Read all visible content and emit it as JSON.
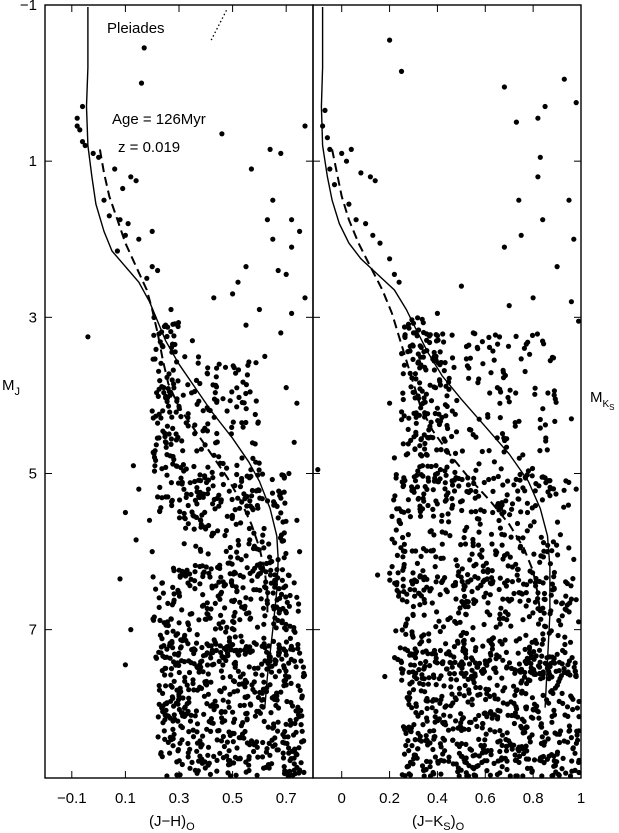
{
  "chart_data": [
    {
      "type": "scatter",
      "panel": "left",
      "xlabel_main": "(J−H)",
      "xlabel_sub": "O",
      "ylabel_main": "M",
      "ylabel_sub": "J",
      "xlim": [
        -0.2,
        0.8
      ],
      "ylim": [
        8.9,
        -1
      ],
      "x_ticks": [
        -0.1,
        0.1,
        0.3,
        0.5,
        0.7
      ],
      "x_tick_labels": [
        "−0.1",
        "0.1",
        "0.3",
        "0.5",
        "0.7"
      ],
      "y_ticks": [
        -1,
        1,
        3,
        5,
        7
      ],
      "y_tick_labels": [
        "−1",
        "1",
        "3",
        "5",
        "7"
      ],
      "annotations": {
        "cluster": "Pleiades",
        "age": "Age = 126Myr",
        "metallicity": "z = 0.019"
      },
      "reddening_vector": {
        "x": [
          0.42,
          0.48
        ],
        "y": [
          -0.55,
          -0.95
        ]
      },
      "isochrone_solid": {
        "x": [
          -0.04,
          -0.04,
          -0.045,
          -0.04,
          -0.025,
          -0.01,
          0.02,
          0.05,
          0.1,
          0.15,
          0.19,
          0.22,
          0.25,
          0.3,
          0.36,
          0.42,
          0.5,
          0.56,
          0.6,
          0.64,
          0.665,
          0.67,
          0.665,
          0.65,
          0.63,
          0.62
        ],
        "y": [
          -1,
          -0.2,
          0.3,
          0.8,
          1.2,
          1.55,
          1.9,
          2.15,
          2.35,
          2.55,
          2.8,
          3.05,
          3.3,
          3.6,
          3.9,
          4.2,
          4.55,
          4.85,
          5.1,
          5.45,
          5.8,
          6.1,
          6.5,
          7.0,
          7.6,
          8.0
        ]
      },
      "isochrone_dashed": {
        "x": [
          0.005,
          0.02,
          0.04,
          0.07,
          0.1,
          0.14,
          0.18,
          0.2,
          0.22,
          0.24,
          0.26,
          0.3,
          0.36,
          0.42,
          0.48,
          0.53,
          0.57,
          0.6,
          0.62,
          0.63,
          0.63
        ],
        "y": [
          0.85,
          1.15,
          1.45,
          1.75,
          2.05,
          2.35,
          2.65,
          2.9,
          3.2,
          3.55,
          3.85,
          4.15,
          4.45,
          4.75,
          5.05,
          5.35,
          5.65,
          5.95,
          6.25,
          6.55,
          6.8
        ]
      },
      "points": [
        [
          -0.08,
          0.45
        ],
        [
          -0.08,
          0.55
        ],
        [
          -0.07,
          0.6
        ],
        [
          -0.06,
          0.3
        ],
        [
          -0.06,
          0.75
        ],
        [
          -0.05,
          0.8
        ],
        [
          -0.02,
          0.9
        ],
        [
          0.0,
          0.95
        ],
        [
          0.06,
          1.1
        ],
        [
          0.09,
          1.35
        ],
        [
          0.12,
          1.2
        ],
        [
          0.14,
          1.25
        ],
        [
          0.02,
          1.5
        ],
        [
          0.04,
          1.7
        ],
        [
          0.08,
          1.75
        ],
        [
          0.11,
          1.8
        ],
        [
          0.1,
          1.95
        ],
        [
          0.2,
          1.9
        ],
        [
          0.07,
          2.15
        ],
        [
          0.15,
          2.0
        ],
        [
          0.2,
          2.35
        ],
        [
          0.22,
          2.4
        ],
        [
          0.18,
          2.5
        ],
        [
          0.16,
          0.0
        ],
        [
          0.17,
          -0.45
        ],
        [
          0.46,
          0.65
        ],
        [
          0.57,
          1.1
        ],
        [
          0.64,
          0.85
        ],
        [
          0.68,
          0.9
        ],
        [
          0.65,
          1.5
        ],
        [
          0.63,
          1.75
        ],
        [
          0.65,
          2.0
        ],
        [
          0.72,
          1.75
        ],
        [
          0.75,
          1.9
        ],
        [
          0.72,
          2.1
        ],
        [
          0.7,
          2.45
        ],
        [
          0.67,
          2.4
        ],
        [
          0.55,
          2.35
        ],
        [
          0.77,
          0.55
        ],
        [
          0.52,
          2.55
        ],
        [
          0.5,
          2.7
        ],
        [
          0.77,
          2.75
        ],
        [
          0.72,
          2.95
        ],
        [
          0.43,
          2.75
        ],
        [
          0.6,
          2.9
        ],
        [
          -0.04,
          3.25
        ],
        [
          0.27,
          2.9
        ],
        [
          0.25,
          3.1
        ],
        [
          0.1,
          5.5
        ],
        [
          0.13,
          4.9
        ],
        [
          0.15,
          5.2
        ],
        [
          0.08,
          6.35
        ],
        [
          0.12,
          7.0
        ],
        [
          0.1,
          7.45
        ],
        [
          0.14,
          5.85
        ],
        [
          0.2,
          4.2
        ],
        [
          0.21,
          4.9
        ],
        [
          0.22,
          5.3
        ],
        [
          0.19,
          5.6
        ],
        [
          0.2,
          6.0
        ],
        [
          0.35,
          3.3
        ],
        [
          0.45,
          3.6
        ],
        [
          0.55,
          3.1
        ],
        [
          0.62,
          3.5
        ],
        [
          0.68,
          3.2
        ],
        [
          0.7,
          3.9
        ],
        [
          0.74,
          4.1
        ],
        [
          0.73,
          4.6
        ],
        [
          0.71,
          5.0
        ],
        [
          0.74,
          5.6
        ],
        [
          0.75,
          6.0
        ],
        [
          0.73,
          6.4
        ],
        [
          0.7,
          7.0
        ],
        [
          0.75,
          7.3
        ],
        [
          0.68,
          7.8
        ],
        [
          0.72,
          8.2
        ],
        [
          0.74,
          8.6
        ],
        [
          0.73,
          8.8
        ]
      ],
      "cloud": [
        {
          "x_min": 0.2,
          "x_max": 0.3,
          "y_min": 3.0,
          "y_max": 5.5,
          "n": 90,
          "seed": 11
        },
        {
          "x_min": 0.25,
          "x_max": 0.6,
          "y_min": 3.5,
          "y_max": 5.5,
          "n": 150,
          "seed": 12
        },
        {
          "x_min": 0.3,
          "x_max": 0.7,
          "y_min": 5.0,
          "y_max": 6.5,
          "n": 180,
          "seed": 13
        },
        {
          "x_min": 0.2,
          "x_max": 0.75,
          "y_min": 6.2,
          "y_max": 7.5,
          "n": 260,
          "seed": 14
        },
        {
          "x_min": 0.22,
          "x_max": 0.77,
          "y_min": 7.2,
          "y_max": 8.9,
          "n": 460,
          "seed": 15
        }
      ]
    },
    {
      "type": "scatter",
      "panel": "right",
      "xlabel_main": "(J−K",
      "xlabel_mid": "S",
      "xlabel_end": ")",
      "xlabel_sub": "O",
      "ylabel_main": "M",
      "ylabel_sub": "K",
      "ylabel_subsub": "S",
      "xlim": [
        -0.12,
        1.0
      ],
      "ylim": [
        8.9,
        -1
      ],
      "x_ticks": [
        0,
        0.2,
        0.4,
        0.6,
        0.8,
        1.0
      ],
      "x_tick_labels": [
        "0",
        "0.2",
        "0.4",
        "0.6",
        "0.8",
        "1"
      ],
      "isochrone_solid": {
        "x": [
          -0.08,
          -0.08,
          -0.085,
          -0.08,
          -0.06,
          -0.04,
          -0.01,
          0.03,
          0.08,
          0.15,
          0.22,
          0.27,
          0.31,
          0.36,
          0.42,
          0.5,
          0.6,
          0.7,
          0.78,
          0.83,
          0.86,
          0.87,
          0.87,
          0.86,
          0.85
        ],
        "y": [
          -1,
          -0.2,
          0.3,
          0.8,
          1.2,
          1.5,
          1.8,
          2.05,
          2.25,
          2.45,
          2.65,
          2.9,
          3.15,
          3.45,
          3.75,
          4.05,
          4.4,
          4.75,
          5.1,
          5.45,
          5.8,
          6.2,
          6.8,
          7.4,
          8.0
        ]
      },
      "isochrone_dashed": {
        "x": [
          -0.04,
          -0.02,
          0.0,
          0.03,
          0.07,
          0.12,
          0.17,
          0.21,
          0.24,
          0.27,
          0.3,
          0.33,
          0.38,
          0.45,
          0.53,
          0.62,
          0.7,
          0.76,
          0.8,
          0.82,
          0.83
        ],
        "y": [
          0.85,
          1.15,
          1.45,
          1.75,
          2.05,
          2.35,
          2.65,
          2.95,
          3.25,
          3.55,
          3.85,
          4.15,
          4.45,
          4.75,
          5.05,
          5.35,
          5.65,
          5.95,
          6.25,
          6.55,
          6.8
        ]
      },
      "points": [
        [
          -0.07,
          0.35
        ],
        [
          -0.08,
          0.55
        ],
        [
          -0.06,
          0.7
        ],
        [
          -0.05,
          0.85
        ],
        [
          -0.05,
          1.1
        ],
        [
          -0.03,
          1.3
        ],
        [
          0.0,
          0.9
        ],
        [
          0.02,
          1.0
        ],
        [
          0.04,
          0.85
        ],
        [
          0.08,
          1.15
        ],
        [
          0.12,
          1.2
        ],
        [
          0.14,
          1.25
        ],
        [
          0.03,
          1.55
        ],
        [
          0.06,
          1.75
        ],
        [
          0.1,
          1.8
        ],
        [
          0.13,
          1.95
        ],
        [
          0.16,
          2.05
        ],
        [
          0.2,
          2.25
        ],
        [
          0.22,
          2.45
        ],
        [
          0.24,
          2.55
        ],
        [
          0.2,
          -0.55
        ],
        [
          0.25,
          -0.15
        ],
        [
          0.73,
          0.5
        ],
        [
          0.82,
          0.45
        ],
        [
          0.85,
          0.3
        ],
        [
          0.93,
          -0.05
        ],
        [
          0.98,
          0.25
        ],
        [
          0.68,
          0.05
        ],
        [
          0.83,
          0.95
        ],
        [
          0.82,
          1.2
        ],
        [
          0.74,
          1.5
        ],
        [
          0.75,
          1.95
        ],
        [
          0.68,
          2.1
        ],
        [
          0.84,
          1.75
        ],
        [
          0.95,
          1.5
        ],
        [
          0.97,
          2.0
        ],
        [
          0.9,
          2.35
        ],
        [
          0.96,
          2.8
        ],
        [
          0.99,
          3.05
        ],
        [
          0.8,
          2.75
        ],
        [
          0.7,
          2.85
        ],
        [
          0.5,
          2.6
        ],
        [
          0.4,
          2.95
        ],
        [
          0.55,
          3.2
        ],
        [
          -0.1,
          4.95
        ],
        [
          0.15,
          6.3
        ],
        [
          0.18,
          7.6
        ],
        [
          0.28,
          7.9
        ],
        [
          0.3,
          3.2
        ],
        [
          0.2,
          4.1
        ],
        [
          0.22,
          4.8
        ],
        [
          0.24,
          5.6
        ],
        [
          0.96,
          4.3
        ],
        [
          0.98,
          5.2
        ],
        [
          0.97,
          6.1
        ],
        [
          0.99,
          6.9
        ],
        [
          0.98,
          7.6
        ],
        [
          0.95,
          8.3
        ],
        [
          0.99,
          8.7
        ]
      ],
      "cloud": [
        {
          "x_min": 0.25,
          "x_max": 0.45,
          "y_min": 3.0,
          "y_max": 5.0,
          "n": 120,
          "seed": 21
        },
        {
          "x_min": 0.3,
          "x_max": 0.9,
          "y_min": 3.2,
          "y_max": 5.5,
          "n": 200,
          "seed": 22
        },
        {
          "x_min": 0.2,
          "x_max": 0.95,
          "y_min": 5.0,
          "y_max": 6.5,
          "n": 260,
          "seed": 23
        },
        {
          "x_min": 0.22,
          "x_max": 0.98,
          "y_min": 6.3,
          "y_max": 7.6,
          "n": 320,
          "seed": 24
        },
        {
          "x_min": 0.25,
          "x_max": 1.0,
          "y_min": 7.4,
          "y_max": 8.9,
          "n": 520,
          "seed": 25
        }
      ]
    }
  ]
}
